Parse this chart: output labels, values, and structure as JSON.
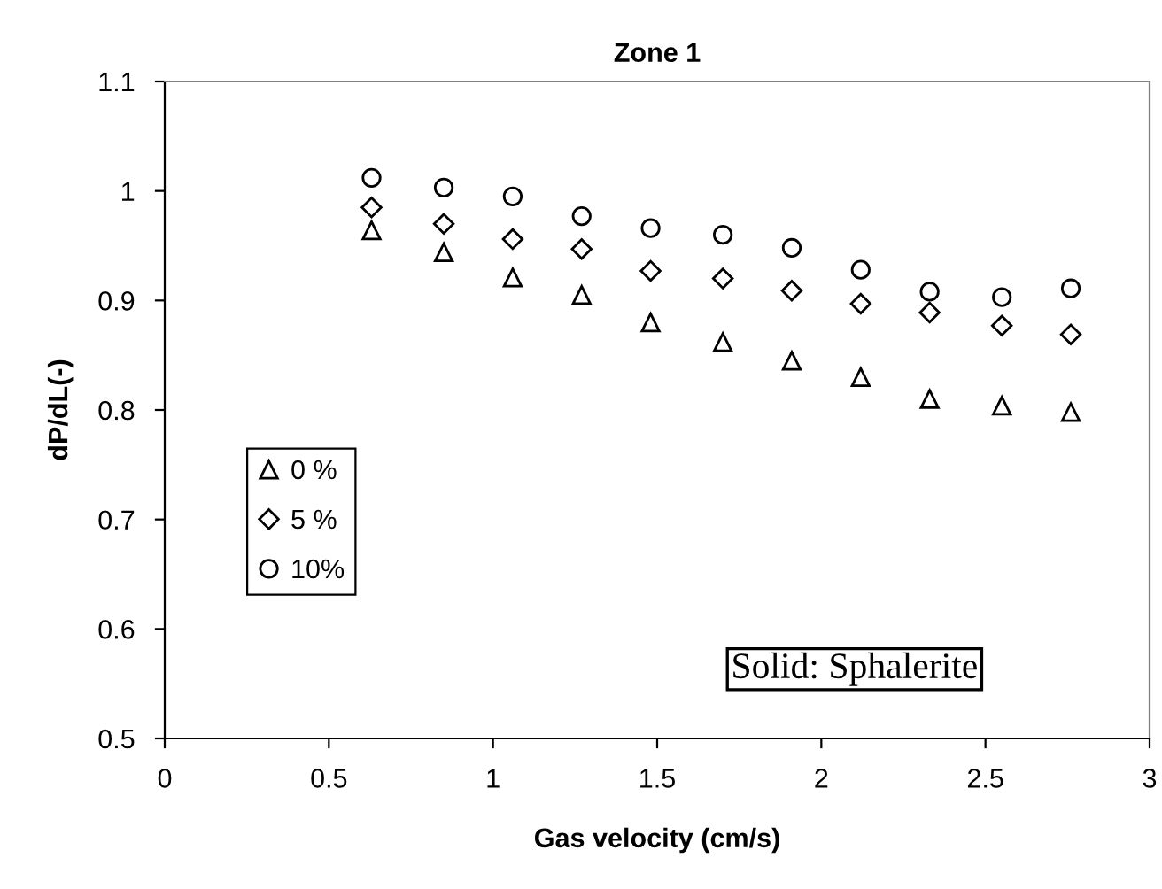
{
  "chart_data": {
    "type": "scatter",
    "title": "Zone 1",
    "xlabel": "Gas velocity (cm/s)",
    "ylabel": "dP/dL(-)",
    "x": [
      0.63,
      0.85,
      1.06,
      1.27,
      1.48,
      1.7,
      1.91,
      2.12,
      2.33,
      2.55,
      2.76
    ],
    "series": [
      {
        "name": "0 %",
        "color": "#000000",
        "marker": "triangle",
        "values": [
          0.964,
          0.944,
          0.921,
          0.905,
          0.88,
          0.862,
          0.845,
          0.83,
          0.81,
          0.804,
          0.798
        ]
      },
      {
        "name": "5 %",
        "color": "#000000",
        "marker": "diamond",
        "values": [
          0.985,
          0.97,
          0.956,
          0.947,
          0.927,
          0.92,
          0.909,
          0.897,
          0.889,
          0.877,
          0.869
        ]
      },
      {
        "name": "10%",
        "color": "#000000",
        "marker": "circle",
        "values": [
          1.012,
          1.003,
          0.995,
          0.977,
          0.966,
          0.96,
          0.948,
          0.928,
          0.908,
          0.903,
          0.911
        ]
      }
    ],
    "xlim": [
      0,
      3
    ],
    "xticks": [
      0,
      0.5,
      1,
      1.5,
      2,
      2.5,
      3
    ],
    "ylim": [
      0.5,
      1.1
    ],
    "yticks": [
      0.5,
      0.6,
      0.7,
      0.8,
      0.9,
      1,
      1.1
    ],
    "grid": false,
    "legend": "left",
    "annotations": [
      "Solid: Sphalerite"
    ]
  }
}
